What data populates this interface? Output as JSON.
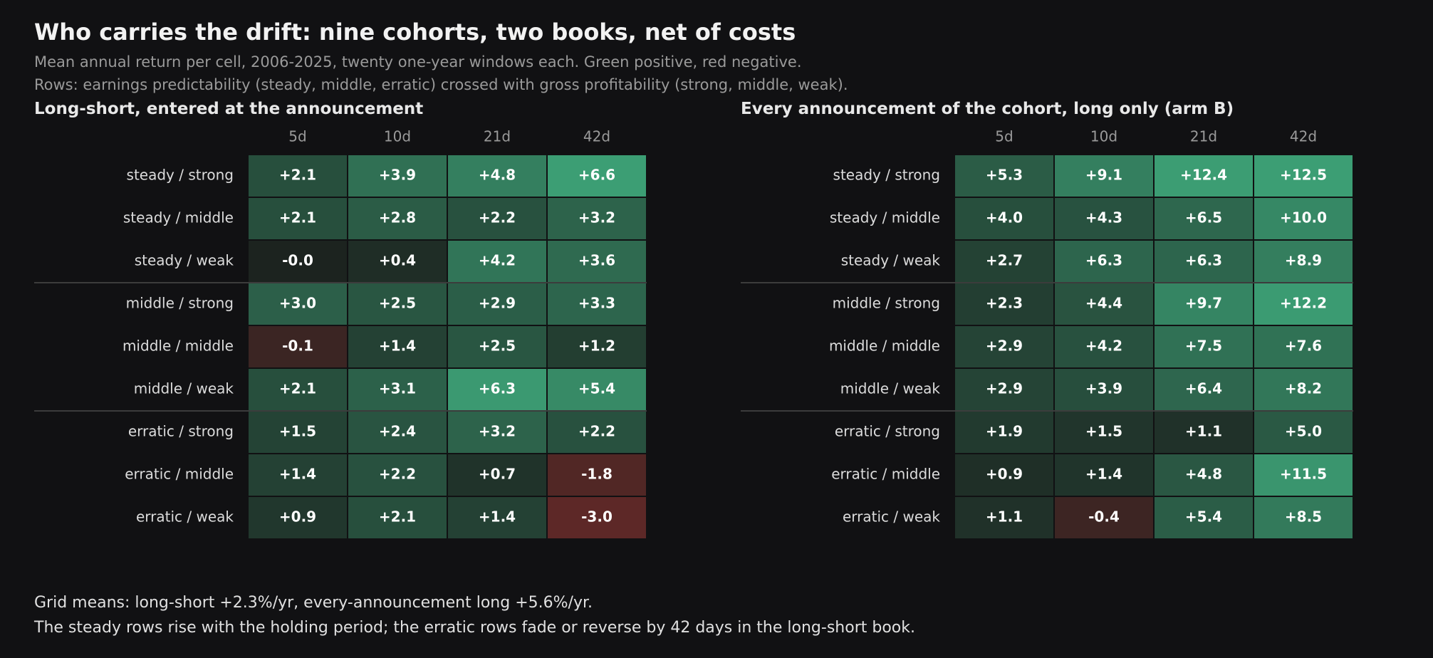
{
  "title": "Who carries the drift: nine cohorts, two books, net of costs",
  "subtitle_lines": [
    "Mean annual return per cell, 2006-2025, twenty one-year windows each. Green positive, red negative.",
    "Rows: earnings predictability (steady, middle, erratic) crossed with gross profitability (strong, middle, weak)."
  ],
  "colors": {
    "background": "#111113",
    "positive": "#3c9e74",
    "negative": "#7a2a2a",
    "neutral": "#1c231f"
  },
  "chart_data": [
    {
      "type": "heatmap",
      "title": "Long-short, entered at the announcement",
      "columns": [
        "5d",
        "10d",
        "21d",
        "42d"
      ],
      "rows": [
        "steady / strong",
        "steady / middle",
        "steady / weak",
        "middle / strong",
        "middle / middle",
        "middle / weak",
        "erratic / strong",
        "erratic / middle",
        "erratic / weak"
      ],
      "values": [
        [
          2.1,
          3.9,
          4.8,
          6.6
        ],
        [
          2.1,
          2.8,
          2.2,
          3.2
        ],
        [
          -0.0,
          0.4,
          4.2,
          3.6
        ],
        [
          3.0,
          2.5,
          2.9,
          3.3
        ],
        [
          -0.1,
          1.4,
          2.5,
          1.2
        ],
        [
          2.1,
          3.1,
          6.3,
          5.4
        ],
        [
          1.5,
          2.4,
          3.2,
          2.2
        ],
        [
          1.4,
          2.2,
          0.7,
          -1.8
        ],
        [
          0.9,
          2.1,
          1.4,
          -3.0
        ]
      ],
      "labels": [
        [
          "+2.1",
          "+3.9",
          "+4.8",
          "+6.6"
        ],
        [
          "+2.1",
          "+2.8",
          "+2.2",
          "+3.2"
        ],
        [
          "-0.0",
          "+0.4",
          "+4.2",
          "+3.6"
        ],
        [
          "+3.0",
          "+2.5",
          "+2.9",
          "+3.3"
        ],
        [
          "-0.1",
          "+1.4",
          "+2.5",
          "+1.2"
        ],
        [
          "+2.1",
          "+3.1",
          "+6.3",
          "+5.4"
        ],
        [
          "+1.5",
          "+2.4",
          "+3.2",
          "+2.2"
        ],
        [
          "+1.4",
          "+2.2",
          "+0.7",
          "-1.8"
        ],
        [
          "+0.9",
          "+2.1",
          "+1.4",
          "-3.0"
        ]
      ]
    },
    {
      "type": "heatmap",
      "title": "Every announcement of the cohort, long only (arm B)",
      "columns": [
        "5d",
        "10d",
        "21d",
        "42d"
      ],
      "rows": [
        "steady / strong",
        "steady / middle",
        "steady / weak",
        "middle / strong",
        "middle / middle",
        "middle / weak",
        "erratic / strong",
        "erratic / middle",
        "erratic / weak"
      ],
      "values": [
        [
          5.3,
          9.1,
          12.4,
          12.5
        ],
        [
          4.0,
          4.3,
          6.5,
          10.0
        ],
        [
          2.7,
          6.3,
          6.3,
          8.9
        ],
        [
          2.3,
          4.4,
          9.7,
          12.2
        ],
        [
          2.9,
          4.2,
          7.5,
          7.6
        ],
        [
          2.9,
          3.9,
          6.4,
          8.2
        ],
        [
          1.9,
          1.5,
          1.1,
          5.0
        ],
        [
          0.9,
          1.4,
          4.8,
          11.5
        ],
        [
          1.1,
          -0.4,
          5.4,
          8.5
        ]
      ],
      "labels": [
        [
          "+5.3",
          "+9.1",
          "+12.4",
          "+12.5"
        ],
        [
          "+4.0",
          "+4.3",
          "+6.5",
          "+10.0"
        ],
        [
          "+2.7",
          "+6.3",
          "+6.3",
          "+8.9"
        ],
        [
          "+2.3",
          "+4.4",
          "+9.7",
          "+12.2"
        ],
        [
          "+2.9",
          "+4.2",
          "+7.5",
          "+7.6"
        ],
        [
          "+2.9",
          "+3.9",
          "+6.4",
          "+8.2"
        ],
        [
          "+1.9",
          "+1.5",
          "+1.1",
          "+5.0"
        ],
        [
          "+0.9",
          "+1.4",
          "+4.8",
          "+11.5"
        ],
        [
          "+1.1",
          "-0.4",
          "+5.4",
          "+8.5"
        ]
      ]
    }
  ],
  "notes": [
    "Grid means: long-short +2.3%/yr, every-announcement long +5.6%/yr.",
    "The steady rows rise with the holding period; the erratic rows fade or reverse by 42 days in the long-short book."
  ]
}
